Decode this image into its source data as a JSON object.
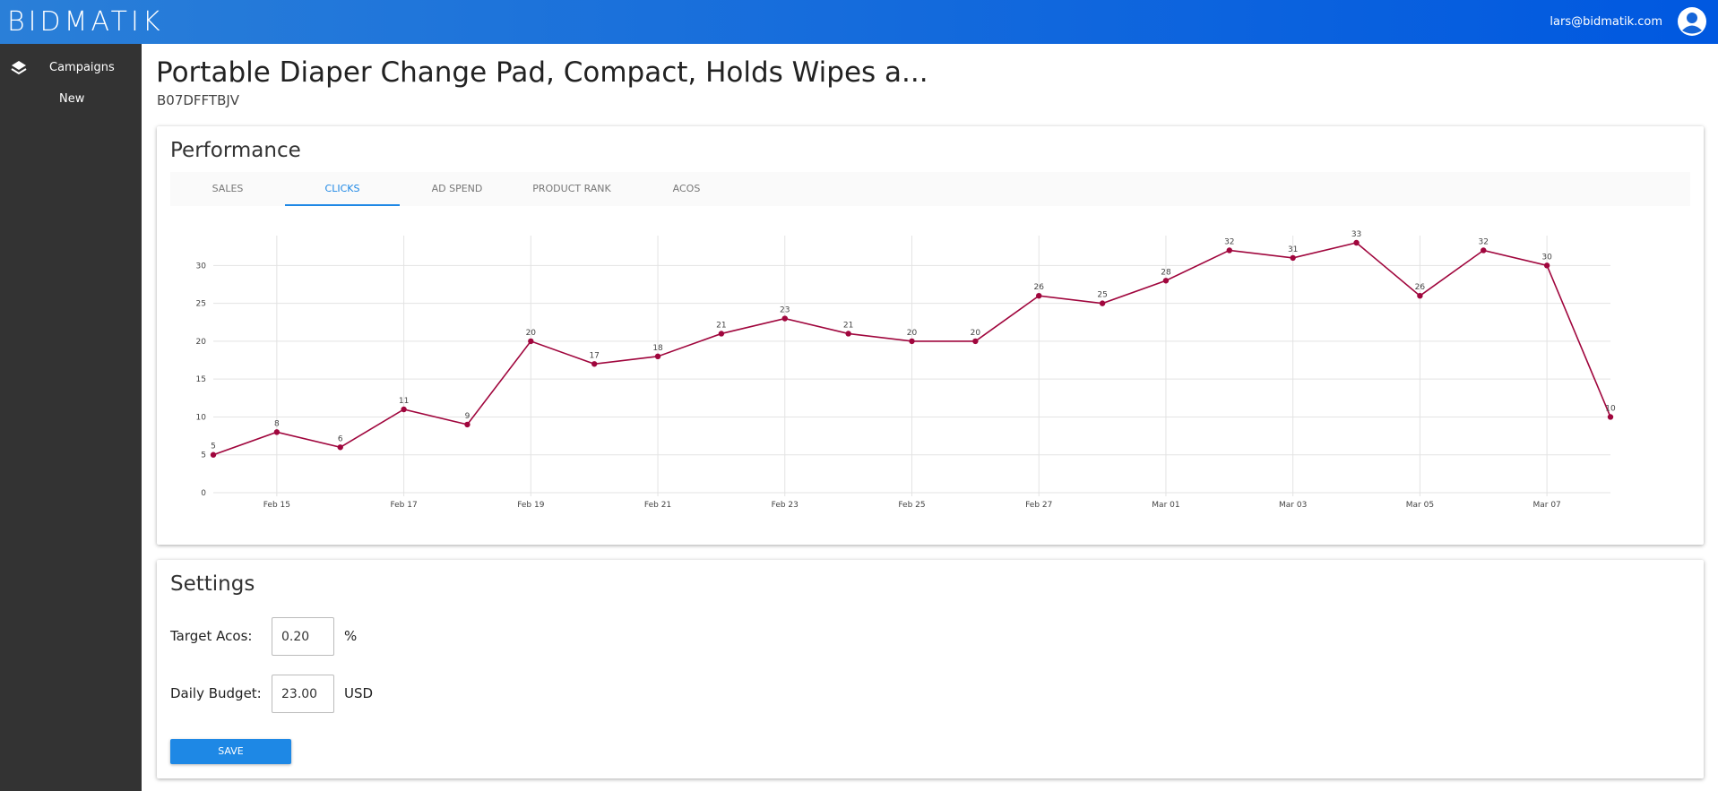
{
  "header": {
    "logo": "BIDMATIK",
    "user": "lars@bidmatik.com"
  },
  "sidebar": {
    "items": [
      "Campaigns",
      "New"
    ]
  },
  "page": {
    "title": "Portable Diaper Change Pad, Compact, Holds Wipes a...",
    "subtitle": "B07DFFTBJV"
  },
  "performance": {
    "title": "Performance",
    "tabs": [
      "SALES",
      "CLICKS",
      "AD SPEND",
      "PRODUCT RANK",
      "ACOS"
    ],
    "active_tab": "CLICKS"
  },
  "chart_data": {
    "type": "line",
    "categories": [
      null,
      "Feb 15",
      null,
      "Feb 17",
      null,
      "Feb 19",
      null,
      "Feb 21",
      null,
      "Feb 23",
      null,
      "Feb 25",
      null,
      "Feb 27",
      null,
      "Mar 01",
      null,
      "Mar 03",
      null,
      "Mar 05",
      null,
      "Mar 07",
      null
    ],
    "series": [
      {
        "name": "Clicks",
        "color": "#a0063d",
        "values": [
          5,
          8,
          6,
          11,
          9,
          20,
          17,
          18,
          21,
          23,
          21,
          20,
          20,
          26,
          25,
          28,
          32,
          31,
          33,
          26,
          32,
          30,
          10
        ]
      }
    ],
    "ylim": [
      0,
      33
    ],
    "yticks": [
      0,
      5,
      10,
      15,
      20,
      25,
      30
    ],
    "grid": true
  },
  "settings": {
    "title": "Settings",
    "fields": [
      {
        "label": "Target Acos:",
        "value": "0.20",
        "unit": "%"
      },
      {
        "label": "Daily Budget:",
        "value": "23.00",
        "unit": "USD"
      }
    ],
    "button": "SAVE"
  }
}
